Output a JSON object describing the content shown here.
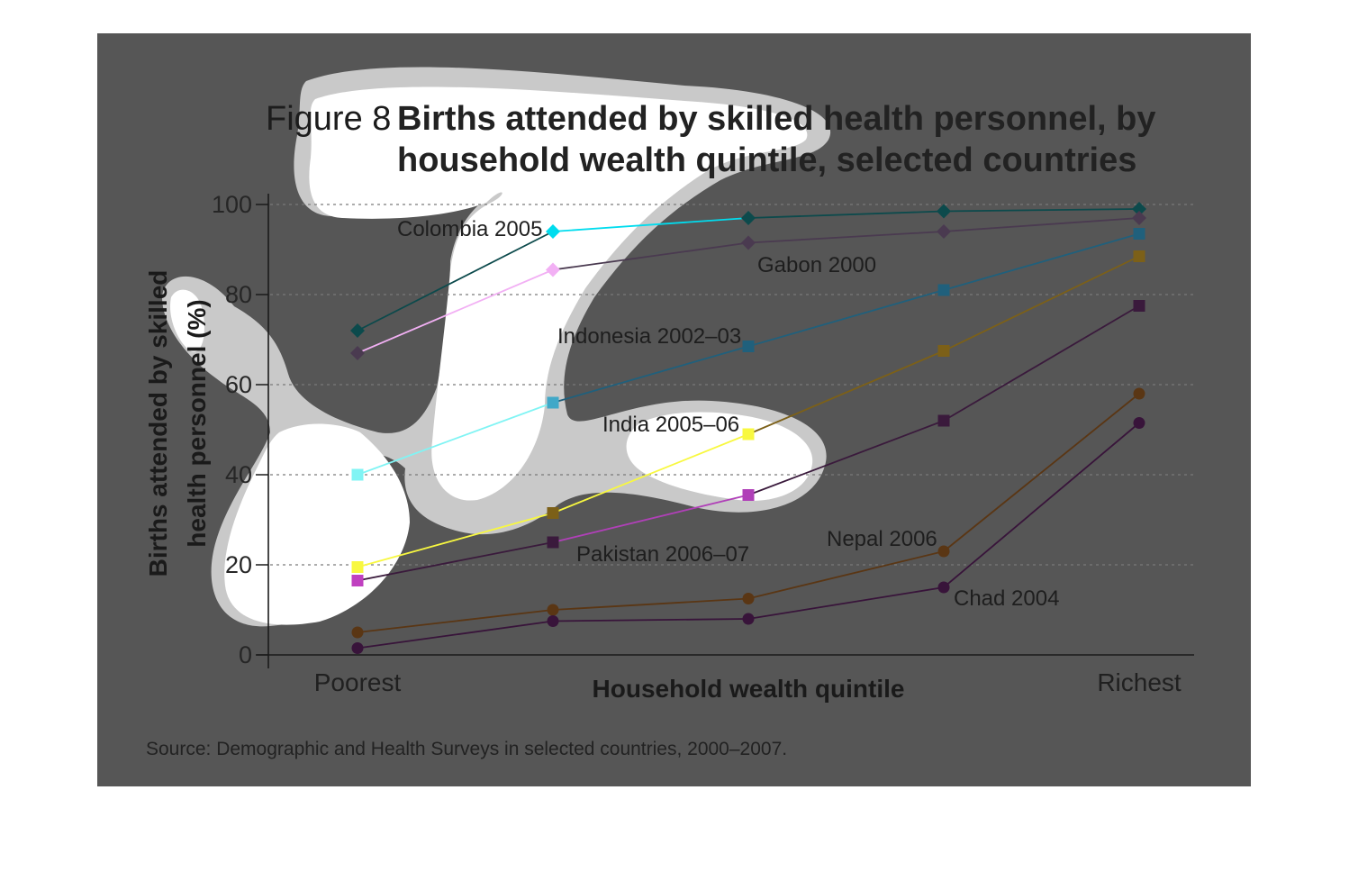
{
  "chart_data": {
    "type": "line",
    "title_prefix": "Figure 8",
    "title_lines": [
      "Births attended by skilled health personnel, by",
      "household wealth quintile, selected countries"
    ],
    "ylabel_lines": [
      "Births attended by skilled",
      "health personnel (%)"
    ],
    "xlabel": "Household wealth quintile",
    "x": [
      "Poorest",
      "",
      "",
      "",
      "Richest"
    ],
    "y_ticks": [
      0,
      20,
      40,
      60,
      80,
      100
    ],
    "ylim": [
      0,
      100
    ],
    "grid": true,
    "source": "Source: Demographic and Health Surveys in selected countries, 2000–2007.",
    "series": [
      {
        "name": "Colombia 2005",
        "marker": "diamond",
        "colors": [
          "#0c4a4c",
          "#00dcee",
          "#0c4a4c",
          "#0c4a4c",
          "#0c4a4c"
        ],
        "line_colors": [
          "#0c4a4c",
          "#00dcee",
          "#0c4a4c",
          "#0c4a4c"
        ],
        "values": [
          72,
          94,
          97,
          98.5,
          99
        ]
      },
      {
        "name": "Gabon 2000",
        "marker": "diamond",
        "colors": [
          "#4a3a50",
          "#f2b0f4",
          "#4a3a50",
          "#4a3a50",
          "#4a3a50"
        ],
        "line_colors": [
          "#f2b0f4",
          "#4a3a50",
          "#4a3a50",
          "#4a3a50"
        ],
        "values": [
          67,
          85.5,
          91.5,
          94,
          97
        ]
      },
      {
        "name": "Indonesia 2002–03",
        "marker": "square",
        "colors": [
          "#80f4f4",
          "#40a8c8",
          "#20607c",
          "#20607c",
          "#20607c"
        ],
        "line_colors": [
          "#80f4f4",
          "#20607c",
          "#20607c",
          "#20607c"
        ],
        "values": [
          40,
          56,
          68.5,
          81,
          93.5
        ]
      },
      {
        "name": "India 2005–06",
        "marker": "square",
        "colors": [
          "#f8f840",
          "#7c6018",
          "#f8f840",
          "#7c6018",
          "#7c6018"
        ],
        "line_colors": [
          "#f8f840",
          "#f8f840",
          "#7c6018",
          "#7c6018"
        ],
        "values": [
          19.5,
          31.5,
          49,
          67.5,
          88.5
        ]
      },
      {
        "name": "Pakistan 2006–07",
        "marker": "square",
        "colors": [
          "#c040c0",
          "#3a1a3c",
          "#b040b8",
          "#3a1a3c",
          "#3a1a3c"
        ],
        "line_colors": [
          "#3a1a3c",
          "#b040b8",
          "#3a1a3c",
          "#3a1a3c"
        ],
        "values": [
          16.5,
          25,
          35.5,
          52,
          77.5
        ]
      },
      {
        "name": "Nepal 2006",
        "marker": "circle",
        "colors": [
          "#5a3614",
          "#5a3614",
          "#5a3614",
          "#5a3614",
          "#5a3614"
        ],
        "line_colors": [
          "#5a3614",
          "#5a3614",
          "#5a3614",
          "#5a3614"
        ],
        "values": [
          5,
          10,
          12.5,
          23,
          58
        ]
      },
      {
        "name": "Chad 2004",
        "marker": "circle",
        "colors": [
          "#38143a",
          "#38143a",
          "#38143a",
          "#38143a",
          "#38143a"
        ],
        "line_colors": [
          "#38143a",
          "#38143a",
          "#38143a",
          "#38143a"
        ],
        "values": [
          1.5,
          7.5,
          8,
          15,
          51.5
        ]
      }
    ]
  }
}
